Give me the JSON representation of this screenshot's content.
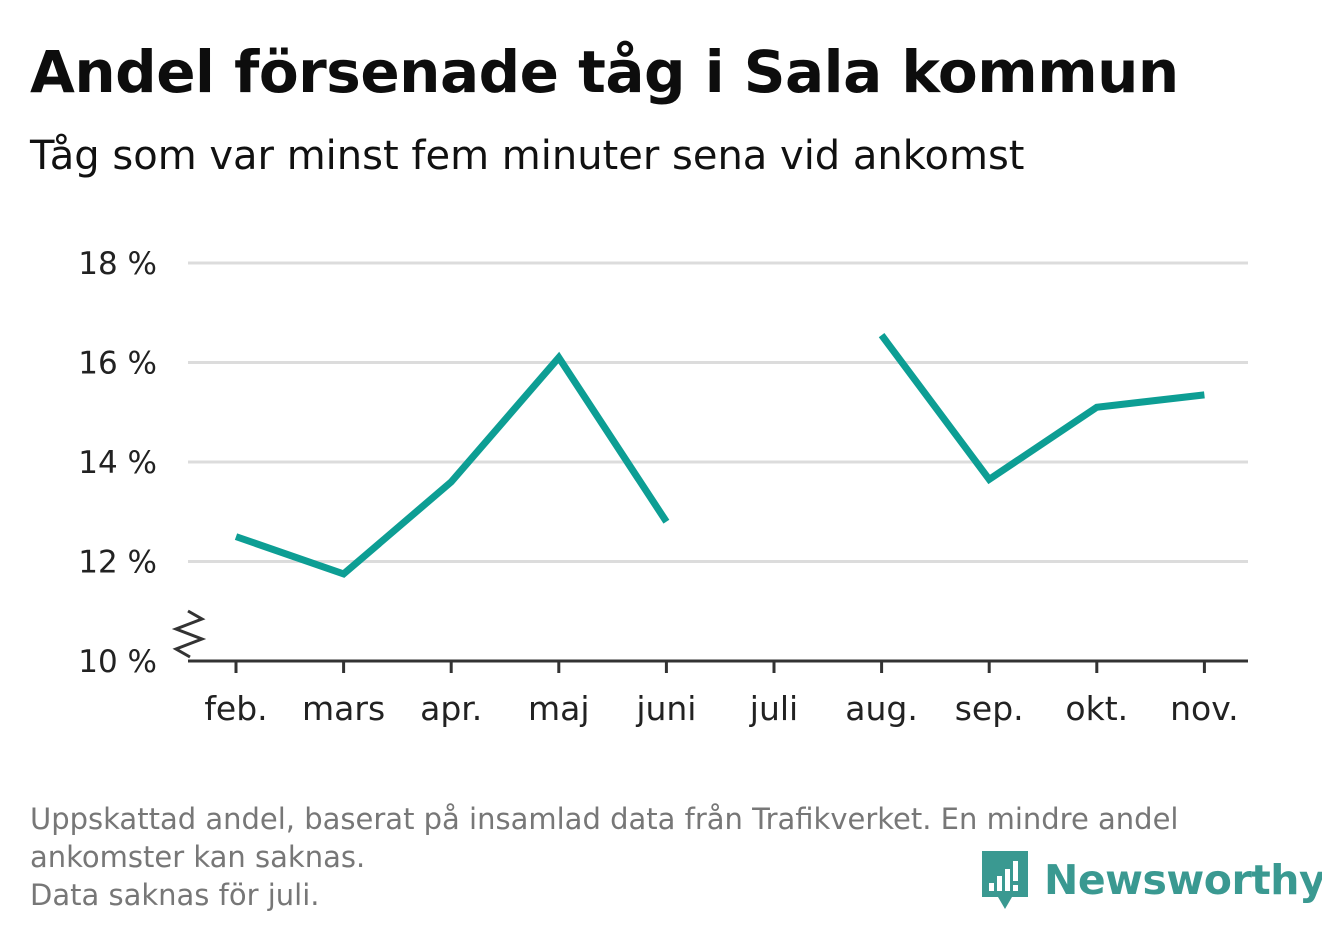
{
  "title": "Andel försenade tåg i Sala kommun",
  "subtitle": "Tåg som var minst fem minuter sena vid ankomst",
  "footnote": {
    "line1": "Uppskattad andel, baserat på insamlad data från Trafikverket. En mindre andel",
    "line2": "ankomster kan saknas.",
    "line3": "Data saknas för juli."
  },
  "brand": {
    "name": "Newsworthy",
    "color": "#3a9991",
    "icon": "newsworthy-logo-icon"
  },
  "chart_data": {
    "type": "line",
    "categories": [
      "feb.",
      "mars",
      "apr.",
      "maj",
      "juni",
      "juli",
      "aug.",
      "sep.",
      "okt.",
      "nov."
    ],
    "series": [
      {
        "values": [
          12.5,
          11.75,
          13.6,
          16.1,
          12.8,
          null,
          16.55,
          13.65,
          15.1,
          15.35
        ],
        "color": "#0d9e94"
      }
    ],
    "ylim": [
      10,
      18
    ],
    "yticks": [
      10,
      12,
      14,
      16,
      18
    ],
    "ytick_labels": [
      "10 %",
      "12 %",
      "14 %",
      "16 %",
      "18 %"
    ],
    "grid": true,
    "axis_break": true
  }
}
